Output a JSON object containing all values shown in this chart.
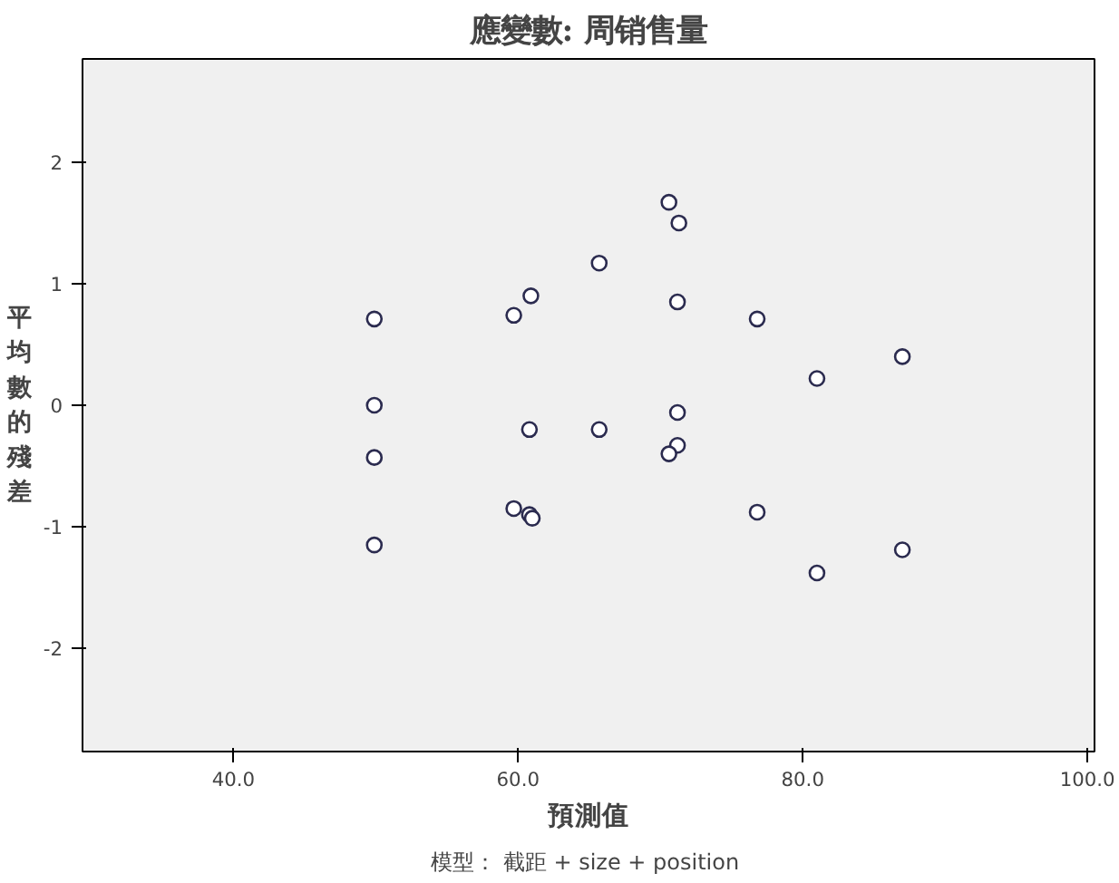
{
  "chart_data": {
    "type": "scatter",
    "title": "應變數: 周销售量",
    "xlabel": "預測值",
    "ylabel": "平均數的殘差",
    "annotations": [
      "模型：  截距 + size + position"
    ],
    "x": [
      49.9,
      49.9,
      49.9,
      49.9,
      59.7,
      60.9,
      60.8,
      59.7,
      60.8,
      61.0,
      65.7,
      65.7,
      70.6,
      71.3,
      71.2,
      71.2,
      71.2,
      70.6,
      76.8,
      76.8,
      81.0,
      81.0,
      87.0,
      87.0
    ],
    "series": [
      {
        "color": "#2b2b4f",
        "values": [
          0.71,
          0.0,
          -0.43,
          -1.15,
          0.74,
          0.9,
          -0.2,
          -0.85,
          -0.9,
          -0.93,
          1.17,
          -0.2,
          1.67,
          1.5,
          0.85,
          -0.06,
          -0.33,
          -0.4,
          0.71,
          -0.88,
          0.22,
          -1.38,
          0.4,
          -1.19
        ]
      }
    ],
    "xlim": [
      29.4,
      100.5
    ],
    "ylim": [
      -2.85,
      2.85
    ],
    "xticks": [
      {
        "value": 40,
        "label": "40.0"
      },
      {
        "value": 60,
        "label": "60.0"
      },
      {
        "value": 80,
        "label": "80.0"
      },
      {
        "value": 100,
        "label": "100.0"
      }
    ],
    "yticks": [
      -2,
      -1,
      0,
      1,
      2
    ],
    "grid": false,
    "marker": "circle"
  }
}
